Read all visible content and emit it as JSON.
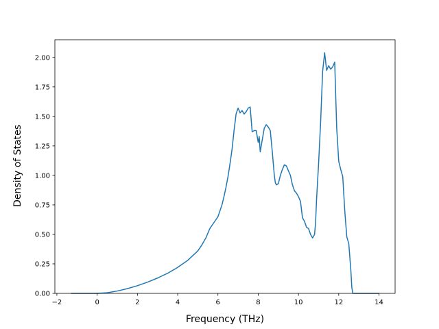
{
  "chart_data": {
    "type": "line",
    "title": "",
    "xlabel": "Frequency (THz)",
    "ylabel": "Density of States",
    "xlim": [
      -2.1,
      14.8
    ],
    "ylim": [
      0,
      2.15
    ],
    "grid": false,
    "legend": "none",
    "line_color": "#1f77b4",
    "xticks": [
      -2,
      0,
      2,
      4,
      6,
      8,
      10,
      12,
      14
    ],
    "xtick_labels": [
      "−2",
      "0",
      "2",
      "4",
      "6",
      "8",
      "10",
      "12",
      "14"
    ],
    "yticks": [
      0,
      0.25,
      0.5,
      0.75,
      1.0,
      1.25,
      1.5,
      1.75,
      2.0
    ],
    "ytick_labels": [
      "0.00",
      "0.25",
      "0.50",
      "0.75",
      "1.00",
      "1.25",
      "1.50",
      "1.75",
      "2.00"
    ],
    "series": [
      {
        "x": [
          -1.3,
          -1.0,
          -0.5,
          0.0,
          0.5,
          1.0,
          1.5,
          2.0,
          2.5,
          3.0,
          3.5,
          4.0,
          4.5,
          5.0,
          5.2,
          5.4,
          5.6,
          5.8,
          6.0,
          6.2,
          6.3,
          6.4,
          6.5,
          6.6,
          6.7,
          6.8,
          6.9,
          7.0,
          7.1,
          7.2,
          7.3,
          7.4,
          7.5,
          7.6,
          7.7,
          7.8,
          7.9,
          8.0,
          8.05,
          8.1,
          8.15,
          8.2,
          8.3,
          8.4,
          8.5,
          8.6,
          8.7,
          8.8,
          8.85,
          8.9,
          9.0,
          9.1,
          9.2,
          9.3,
          9.4,
          9.5,
          9.6,
          9.7,
          9.8,
          9.9,
          10.0,
          10.1,
          10.2,
          10.3,
          10.4,
          10.5,
          10.6,
          10.7,
          10.8,
          10.85,
          10.9,
          11.0,
          11.1,
          11.2,
          11.3,
          11.4,
          11.5,
          11.6,
          11.7,
          11.8,
          11.9,
          12.0,
          12.1,
          12.2,
          12.3,
          12.4,
          12.5,
          12.6,
          12.65,
          12.7,
          12.75,
          12.8,
          13.0,
          13.5,
          14.0
        ],
        "y": [
          0.0,
          0.0,
          0.0,
          0.0,
          0.005,
          0.02,
          0.04,
          0.065,
          0.095,
          0.13,
          0.17,
          0.22,
          0.28,
          0.36,
          0.41,
          0.47,
          0.55,
          0.6,
          0.65,
          0.75,
          0.82,
          0.9,
          0.99,
          1.1,
          1.22,
          1.38,
          1.52,
          1.57,
          1.53,
          1.55,
          1.52,
          1.54,
          1.57,
          1.58,
          1.37,
          1.38,
          1.38,
          1.28,
          1.33,
          1.2,
          1.25,
          1.3,
          1.4,
          1.43,
          1.41,
          1.38,
          1.2,
          1.0,
          0.94,
          0.92,
          0.93,
          1.0,
          1.05,
          1.09,
          1.08,
          1.04,
          1.0,
          0.92,
          0.87,
          0.85,
          0.82,
          0.78,
          0.64,
          0.61,
          0.56,
          0.55,
          0.5,
          0.47,
          0.5,
          0.6,
          0.8,
          1.1,
          1.45,
          1.88,
          2.04,
          1.89,
          1.93,
          1.9,
          1.92,
          1.96,
          1.4,
          1.12,
          1.05,
          0.99,
          0.7,
          0.48,
          0.42,
          0.2,
          0.05,
          0.0,
          0.0,
          0.0,
          0.0,
          0.0,
          0.0
        ]
      }
    ]
  }
}
